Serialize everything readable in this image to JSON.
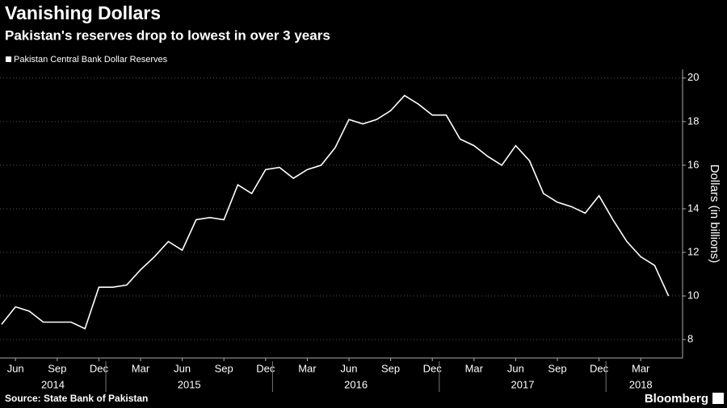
{
  "chart_data": {
    "type": "line",
    "title": "Vanishing Dollars",
    "subtitle": "Pakistan's reserves drop to lowest in over 3 years",
    "y_axis_label": "Dollars (in billions)",
    "source": "Source: State Bank of Pakistan",
    "brand": "Bloomberg",
    "x": [
      "2014-05",
      "2014-06",
      "2014-07",
      "2014-08",
      "2014-09",
      "2014-10",
      "2014-11",
      "2014-12",
      "2015-01",
      "2015-02",
      "2015-03",
      "2015-04",
      "2015-05",
      "2015-06",
      "2015-07",
      "2015-08",
      "2015-09",
      "2015-10",
      "2015-11",
      "2015-12",
      "2016-01",
      "2016-02",
      "2016-03",
      "2016-04",
      "2016-05",
      "2016-06",
      "2016-07",
      "2016-08",
      "2016-09",
      "2016-10",
      "2016-11",
      "2016-12",
      "2017-01",
      "2017-02",
      "2017-03",
      "2017-04",
      "2017-05",
      "2017-06",
      "2017-07",
      "2017-08",
      "2017-09",
      "2017-10",
      "2017-11",
      "2017-12",
      "2018-01",
      "2018-02",
      "2018-03",
      "2018-04",
      "2018-05"
    ],
    "series": [
      {
        "name": "Pakistan Central Bank Dollar Reserves",
        "color": "#ffffff",
        "values": [
          8.7,
          9.5,
          9.3,
          8.8,
          8.8,
          8.8,
          8.5,
          10.4,
          10.4,
          10.5,
          11.2,
          11.8,
          12.5,
          12.1,
          13.5,
          13.6,
          13.5,
          15.1,
          14.7,
          15.8,
          15.9,
          15.4,
          15.8,
          16.0,
          16.8,
          18.1,
          17.9,
          18.1,
          18.5,
          19.2,
          18.8,
          18.3,
          18.3,
          17.2,
          16.9,
          16.4,
          16.0,
          16.9,
          16.2,
          14.7,
          14.3,
          14.1,
          13.8,
          14.6,
          13.5,
          12.5,
          11.8,
          11.4,
          10.0
        ]
      }
    ],
    "xticks": [
      {
        "value": "2014-06",
        "label": "Jun"
      },
      {
        "value": "2014-09",
        "label": "Sep"
      },
      {
        "value": "2014-12",
        "label": "Dec"
      },
      {
        "value": "2015-03",
        "label": "Mar"
      },
      {
        "value": "2015-06",
        "label": "Jun"
      },
      {
        "value": "2015-09",
        "label": "Sep"
      },
      {
        "value": "2015-12",
        "label": "Dec"
      },
      {
        "value": "2016-03",
        "label": "Mar"
      },
      {
        "value": "2016-06",
        "label": "Jun"
      },
      {
        "value": "2016-09",
        "label": "Sep"
      },
      {
        "value": "2016-12",
        "label": "Dec"
      },
      {
        "value": "2017-03",
        "label": "Mar"
      },
      {
        "value": "2017-06",
        "label": "Jun"
      },
      {
        "value": "2017-09",
        "label": "Sep"
      },
      {
        "value": "2017-12",
        "label": "Dec"
      },
      {
        "value": "2018-03",
        "label": "Mar"
      }
    ],
    "year_labels": [
      "2014",
      "2015",
      "2016",
      "2017",
      "2018"
    ],
    "ylim": [
      7.3,
      20.4
    ],
    "yticks": [
      8,
      10,
      12,
      14,
      16,
      18,
      20
    ],
    "grid": true
  }
}
